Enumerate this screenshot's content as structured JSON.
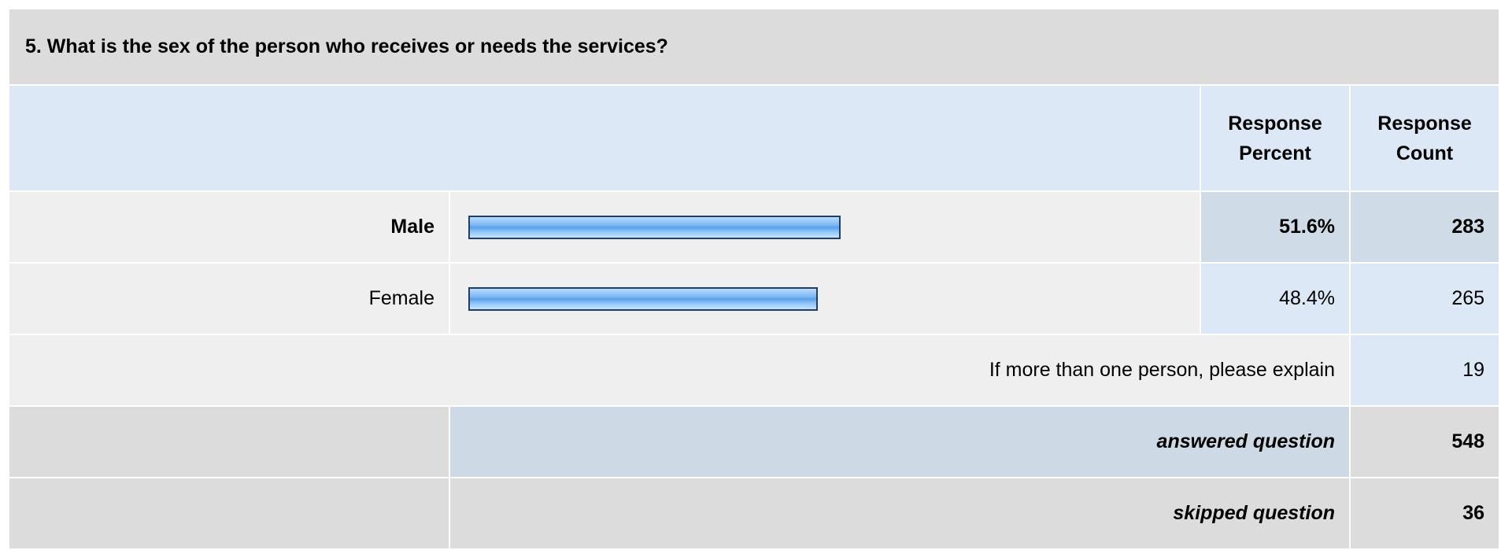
{
  "question": {
    "title": "5. What is the sex of the person who receives or needs the services?"
  },
  "table": {
    "headers": [
      "Response Percent",
      "Response Count"
    ],
    "rows": [
      {
        "label": "Male",
        "percent": 51.6,
        "percent_label": "51.6%",
        "count": 283
      },
      {
        "label": "Female",
        "percent": 48.4,
        "percent_label": "48.4%",
        "count": 265
      }
    ],
    "other": {
      "label": "If more than one person, please explain",
      "count": 19
    },
    "summary": [
      {
        "label": "answered question",
        "count": 548
      },
      {
        "label": "skipped question",
        "count": 36
      }
    ]
  }
}
